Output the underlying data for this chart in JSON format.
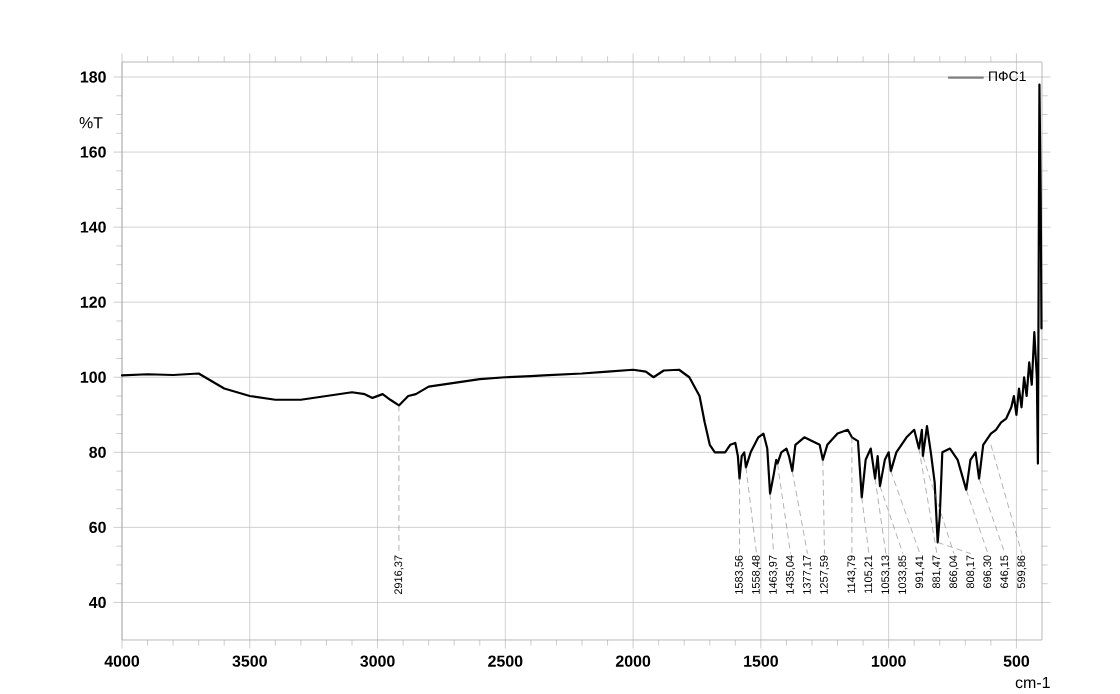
{
  "chart_data": {
    "type": "line",
    "xlabel": "cm-1",
    "ylabel": "%T",
    "xlim": [
      4000,
      400
    ],
    "ylim": [
      30,
      184
    ],
    "xticks": [
      4000,
      3500,
      3000,
      2500,
      2000,
      1500,
      1000,
      500
    ],
    "yticks": [
      40,
      60,
      80,
      100,
      120,
      140,
      160,
      180
    ],
    "grid": true,
    "legend": "top right",
    "marker": "none",
    "line_style": "solid",
    "series": [
      {
        "name": "ПФС1",
        "color": "#000000",
        "x": [
          4000,
          3900,
          3800,
          3700,
          3600,
          3500,
          3400,
          3300,
          3200,
          3100,
          3050,
          3020,
          2980,
          2950,
          2916.37,
          2880,
          2850,
          2800,
          2700,
          2600,
          2500,
          2400,
          2350,
          2200,
          2100,
          2000,
          1950,
          1920,
          1880,
          1820,
          1780,
          1740,
          1720,
          1700,
          1680,
          1640,
          1620,
          1600,
          1590,
          1583.56,
          1575,
          1565,
          1558.48,
          1540,
          1510,
          1490,
          1475,
          1463.97,
          1450,
          1440,
          1435.04,
          1420,
          1400,
          1390,
          1377.17,
          1365,
          1330,
          1300,
          1270,
          1257.59,
          1240,
          1200,
          1160,
          1143.79,
          1120,
          1105.21,
          1090,
          1070,
          1053.13,
          1043,
          1033.85,
          1015,
          1000,
          991.41,
          970,
          930,
          900,
          881.47,
          870,
          866.04,
          850,
          835,
          820,
          808.17,
          800,
          790,
          760,
          730,
          696.3,
          680,
          660,
          646.15,
          630,
          599.86,
          580,
          560,
          540,
          520,
          510,
          500,
          490,
          480,
          470,
          460,
          450,
          440,
          430,
          420,
          416,
          410,
          405,
          402
        ],
        "values": [
          100.5,
          100.8,
          100.6,
          101,
          97,
          95,
          94,
          94,
          95,
          96,
          95.5,
          94.5,
          95.5,
          94,
          92.5,
          95,
          95.5,
          97.5,
          98.5,
          99.5,
          100,
          100.3,
          100.5,
          101,
          101.5,
          102,
          101.5,
          100,
          101.8,
          102,
          100,
          95,
          88,
          82,
          80,
          80,
          82,
          82.5,
          79,
          73,
          79,
          80,
          76,
          80,
          84,
          85,
          81,
          69,
          74,
          78,
          77,
          80,
          81,
          79,
          75,
          82,
          84,
          83,
          82,
          78,
          82,
          85,
          86,
          84,
          83,
          68,
          78,
          81,
          73,
          79,
          71,
          78,
          80,
          75,
          80,
          84,
          86,
          81,
          86,
          79,
          87,
          80,
          72,
          56,
          63,
          80,
          81,
          78,
          70,
          78,
          80,
          73,
          82,
          85,
          86,
          88,
          89,
          92,
          95,
          90,
          97,
          92,
          100,
          95,
          104,
          98,
          112,
          100,
          77,
          178,
          148,
          113
        ]
      }
    ],
    "annotations": [
      {
        "text": "2916,37",
        "x": 2916.37,
        "y": 92.5
      },
      {
        "text": "1583,56",
        "x": 1583.56,
        "y": 73
      },
      {
        "text": "1558,48",
        "x": 1558.48,
        "y": 76
      },
      {
        "text": "1463,97",
        "x": 1463.97,
        "y": 69
      },
      {
        "text": "1435,04",
        "x": 1435.04,
        "y": 77
      },
      {
        "text": "1377,17",
        "x": 1377.17,
        "y": 75
      },
      {
        "text": "1257,59",
        "x": 1257.59,
        "y": 78
      },
      {
        "text": "1143,79",
        "x": 1143.79,
        "y": 84
      },
      {
        "text": "1105,21",
        "x": 1105.21,
        "y": 68
      },
      {
        "text": "1053,13",
        "x": 1053.13,
        "y": 73
      },
      {
        "text": "1033,85",
        "x": 1033.85,
        "y": 71
      },
      {
        "text": "991,41",
        "x": 991.41,
        "y": 75
      },
      {
        "text": "881,47",
        "x": 881.47,
        "y": 81
      },
      {
        "text": "866,04",
        "x": 866.04,
        "y": 79
      },
      {
        "text": "808,17",
        "x": 808.17,
        "y": 56
      },
      {
        "text": "696,30",
        "x": 696.3,
        "y": 70
      },
      {
        "text": "646,15",
        "x": 646.15,
        "y": 73
      },
      {
        "text": "599,86",
        "x": 599.86,
        "y": 82
      }
    ]
  }
}
